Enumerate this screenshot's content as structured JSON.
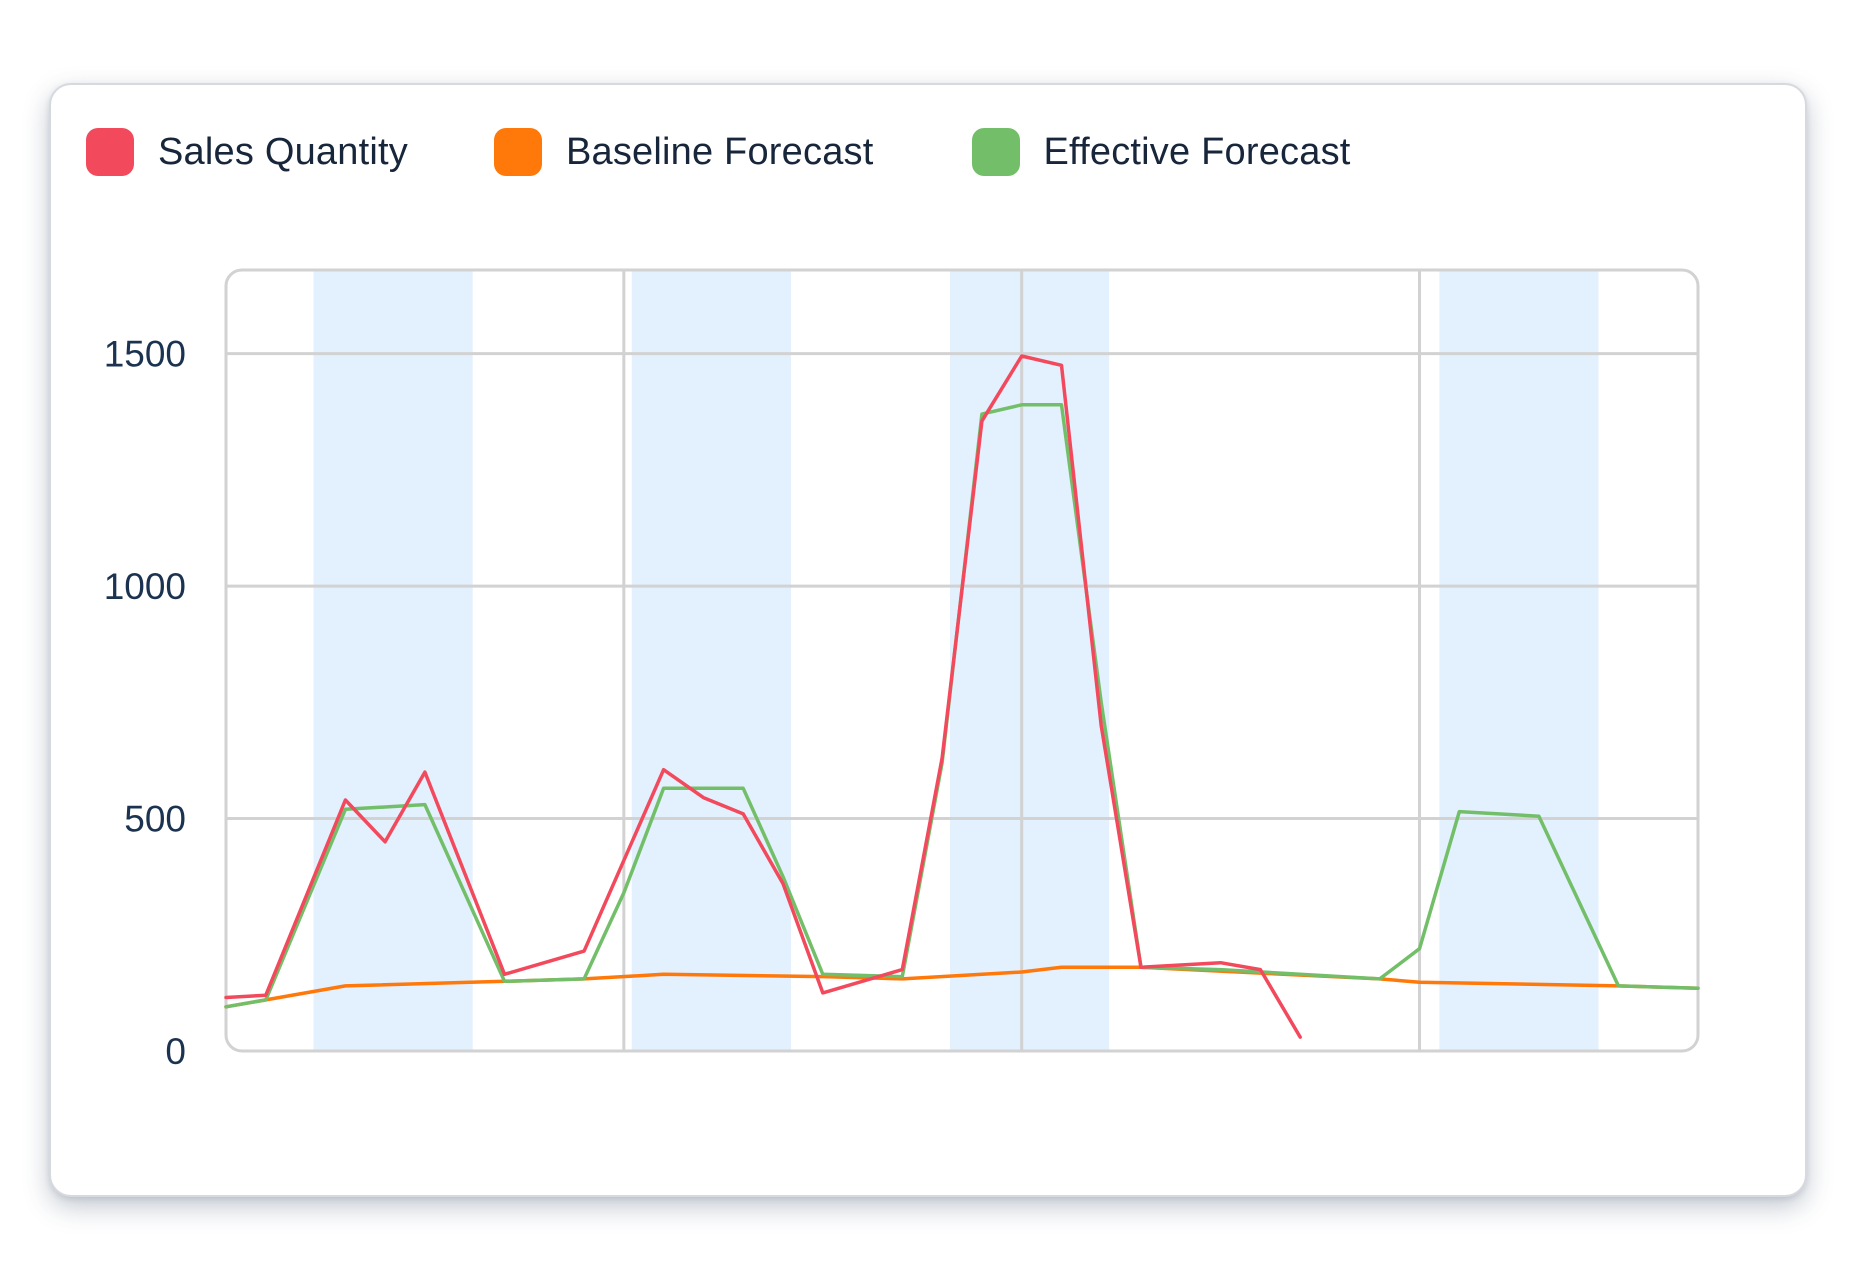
{
  "chart_data": {
    "type": "line",
    "title": "",
    "xlabel": "",
    "ylabel": "",
    "ylim": [
      0,
      1680
    ],
    "yticks": [
      0,
      500,
      1000,
      1500
    ],
    "grid": true,
    "legend_position": "top-left",
    "x": [
      0,
      1,
      2,
      3,
      4,
      5,
      6,
      7,
      8,
      9,
      10,
      11,
      12,
      13,
      14,
      15,
      16,
      17,
      18,
      19,
      20,
      21,
      22,
      23,
      24,
      25,
      26,
      27,
      28,
      29,
      30,
      31,
      32,
      33,
      34,
      35,
      36,
      37
    ],
    "shaded_ranges": [
      [
        2.2,
        6.2
      ],
      [
        10.2,
        14.2
      ],
      [
        18.2,
        22.2
      ],
      [
        30.5,
        34.5
      ]
    ],
    "vertical_gridlines": [
      10,
      20,
      30
    ],
    "series": [
      {
        "name": "Sales Quantity",
        "color": "#f2495c",
        "values": [
          115,
          120,
          null,
          540,
          450,
          600,
          null,
          165,
          null,
          215,
          null,
          605,
          545,
          510,
          360,
          125,
          null,
          175,
          630,
          1355,
          1495,
          1475,
          700,
          180,
          null,
          190,
          175,
          30,
          null,
          null,
          null,
          null,
          null,
          null,
          null,
          null,
          null,
          null
        ]
      },
      {
        "name": "Baseline Forecast",
        "color": "#ff780a",
        "values": [
          95,
          110,
          null,
          140,
          null,
          null,
          null,
          150,
          null,
          155,
          null,
          165,
          null,
          null,
          null,
          160,
          null,
          155,
          null,
          null,
          170,
          180,
          null,
          180,
          null,
          null,
          null,
          null,
          null,
          155,
          148,
          null,
          null,
          null,
          null,
          140,
          null,
          135
        ]
      },
      {
        "name": "Effective Forecast",
        "color": "#73bf69",
        "values": [
          95,
          110,
          null,
          520,
          null,
          530,
          null,
          150,
          null,
          155,
          340,
          565,
          null,
          565,
          375,
          165,
          null,
          160,
          620,
          1370,
          1390,
          1390,
          750,
          180,
          null,
          175,
          null,
          null,
          null,
          155,
          220,
          515,
          null,
          505,
          null,
          140,
          null,
          135
        ]
      }
    ]
  },
  "legend": [
    {
      "label": "Sales Quantity",
      "color": "#f2495c"
    },
    {
      "label": "Baseline Forecast",
      "color": "#ff780a"
    },
    {
      "label": "Effective Forecast",
      "color": "#73bf69"
    }
  ]
}
